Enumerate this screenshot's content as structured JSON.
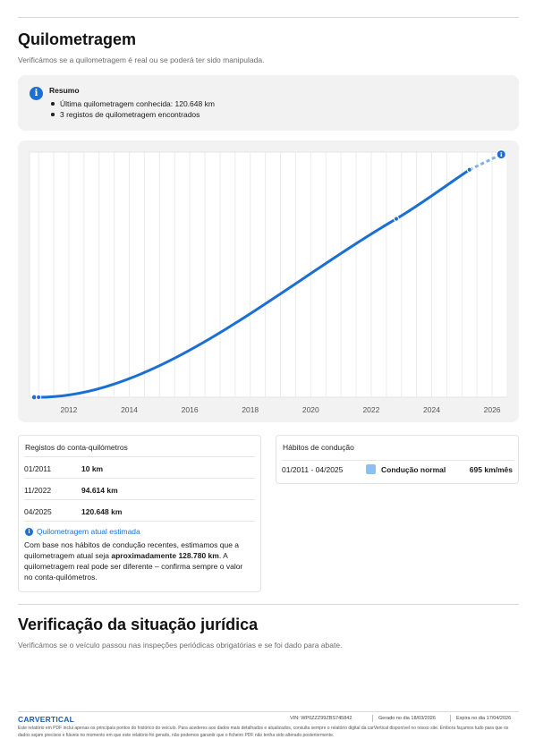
{
  "mileage": {
    "title": "Quilometragem",
    "subtitle": "Verificámos se a quilometragem é real ou se poderá ter sido manipulada.",
    "summary": {
      "icon": "info-icon",
      "title": "Resumo",
      "items": [
        "Última quilometragem conhecida: 120.648 km",
        "3 registos de quilometragem encontrados"
      ]
    }
  },
  "chart_data": {
    "type": "line",
    "title": "",
    "xlabel": "",
    "ylabel": "",
    "x_ticks": [
      "2012",
      "2014",
      "2016",
      "2018",
      "2020",
      "2022",
      "2024",
      "2026"
    ],
    "xlim": [
      2010.7,
      2026.5
    ],
    "ylim": [
      0,
      130000
    ],
    "grid": true,
    "series": [
      {
        "style": "solid",
        "color": "#1b6fd3",
        "points": [
          {
            "x": 2011.0,
            "y": 10
          },
          {
            "x": 2022.83,
            "y": 94614
          },
          {
            "x": 2025.25,
            "y": 120648
          }
        ]
      },
      {
        "style": "dashed",
        "color": "#7fb0e6",
        "points": [
          {
            "x": 2025.25,
            "y": 120648
          },
          {
            "x": 2026.3,
            "y": 128780
          }
        ]
      }
    ],
    "estimate_marker_icon": "info-icon"
  },
  "odometer": {
    "title": "Registos do conta-quilómetros",
    "rows": [
      {
        "date": "01/2011",
        "km": "10 km"
      },
      {
        "date": "11/2022",
        "km": "94.614 km"
      },
      {
        "date": "04/2025",
        "km": "120.648 km"
      }
    ],
    "estimate": {
      "icon": "info-icon",
      "title": "Quilometragem atual estimada",
      "text_before": "Com base nos hábitos de condução recentes, estimamos que a quilometragem atual seja ",
      "value": "aproximadamente 128.780 km",
      "text_after": ". A quilometragem real pode ser diferente – confirma sempre o valor no conta-quilómetros."
    }
  },
  "habits": {
    "title": "Hábitos de condução",
    "row": {
      "range": "01/2011 - 04/2025",
      "label": "Condução normal",
      "rate": "695 km/mês",
      "swatch_color": "#8cc0f2"
    }
  },
  "legal": {
    "title": "Verificação da situação jurídica",
    "subtitle": "Verificámos se o veículo passou nas inspeções periódicas obrigatórias e se foi dado para abate."
  },
  "footer": {
    "logo": "CARVERTICAL",
    "vin": "VIN: WP0ZZZ99ZBS745842",
    "generated": "Gerado no dia 18/03/2026",
    "expires": "Expira no dia 17/04/2026",
    "disclaimer": "Este relatório em PDF inclui apenas os principais pontos do histórico do veículo. Para acederes aos dados mais detalhados e atualizados, consulta sempre o relatório digital da carVertical disponível no nosso site. Embora façamos tudo para que os dados sejam precisos e fiáveis no momento em que este relatório foi gerado, não podemos garantir que o ficheiro PDF não tenha sido alterado posteriormente."
  }
}
